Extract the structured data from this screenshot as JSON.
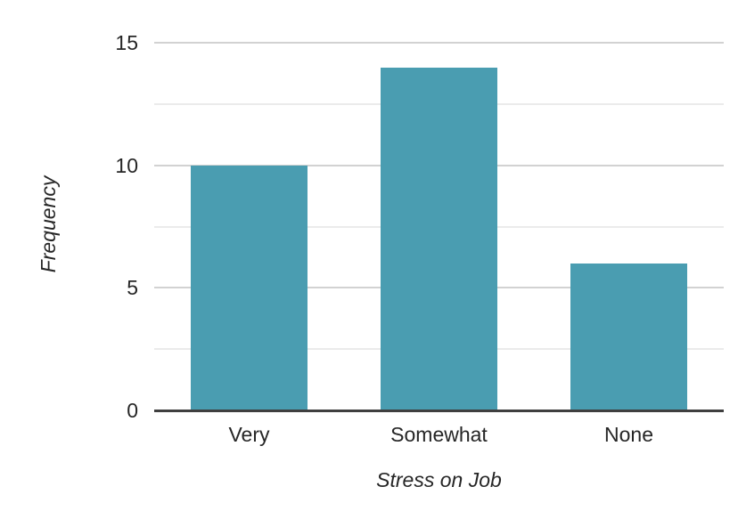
{
  "chart_data": {
    "type": "bar",
    "title": "",
    "categories": [
      "Very",
      "Somewhat",
      "None"
    ],
    "values": [
      10,
      14,
      6
    ],
    "xlabel": "Stress on Job",
    "ylabel": "Frequency",
    "ylim": [
      0,
      15
    ],
    "yticks": [
      0,
      5,
      10,
      15
    ],
    "major_gridlines": [
      5,
      10,
      15
    ],
    "minor_gridlines": [
      2.5,
      7.5,
      12.5
    ],
    "grid": true,
    "legend": false,
    "bar_color": "#4A9DB1",
    "major_grid_color": "#d2d2d2",
    "minor_grid_color": "#ebebeb",
    "axis_line_color": "#3f3f3f",
    "text_color": "#262626",
    "background": "#ffffff"
  }
}
